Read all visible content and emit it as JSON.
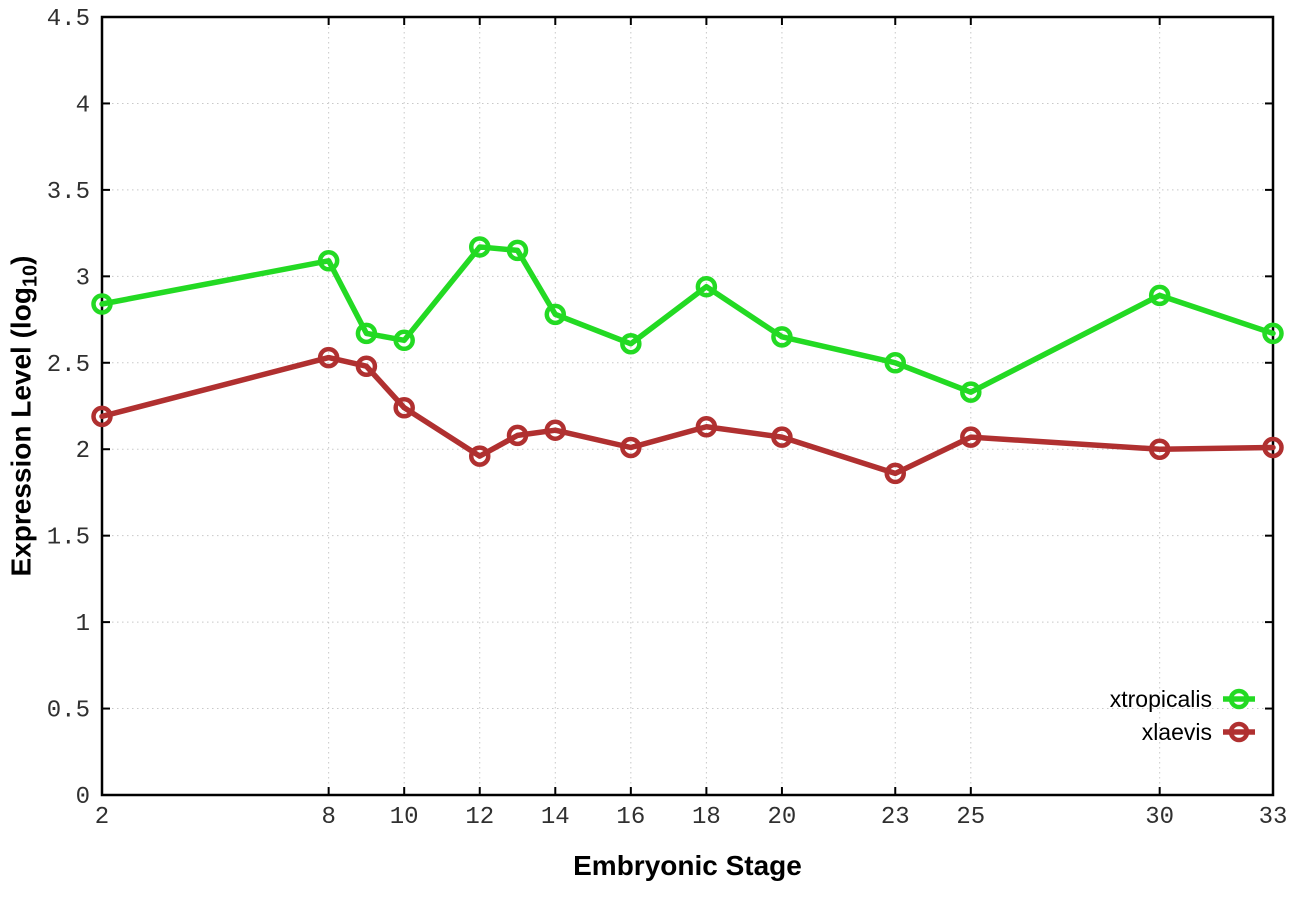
{
  "chart_data": {
    "type": "line",
    "title": "",
    "xlabel": "Embryonic Stage",
    "ylabel": "Expression Level (log10)",
    "ylabel_parts": {
      "prefix": "Expression Level (log",
      "sub": "10",
      "suffix": ")"
    },
    "xlim": [
      2,
      33
    ],
    "ylim": [
      0,
      4.5
    ],
    "x_ticks": [
      2,
      8,
      10,
      12,
      14,
      16,
      18,
      20,
      23,
      25,
      30,
      33
    ],
    "y_ticks": [
      0,
      0.5,
      1,
      1.5,
      2,
      2.5,
      3,
      3.5,
      4,
      4.5
    ],
    "grid": true,
    "legend_position": "bottom-right",
    "x": [
      2,
      8,
      9,
      10,
      12,
      13,
      14,
      16,
      18,
      20,
      23,
      25,
      30,
      33
    ],
    "series": [
      {
        "name": "xtropicalis",
        "color": "#23da23",
        "values": [
          2.84,
          3.09,
          2.67,
          2.63,
          3.17,
          3.15,
          2.78,
          2.61,
          2.94,
          2.65,
          2.5,
          2.33,
          2.89,
          2.67
        ]
      },
      {
        "name": "xlaevis",
        "color": "#b03030",
        "values": [
          2.19,
          2.53,
          2.48,
          2.24,
          1.96,
          2.08,
          2.11,
          2.01,
          2.13,
          2.07,
          1.86,
          2.07,
          2.0,
          2.01
        ]
      }
    ],
    "colors": {
      "border": "#000000",
      "grid": "#c8c8c8",
      "tick_text": "#303030",
      "title_text": "#000000"
    }
  }
}
